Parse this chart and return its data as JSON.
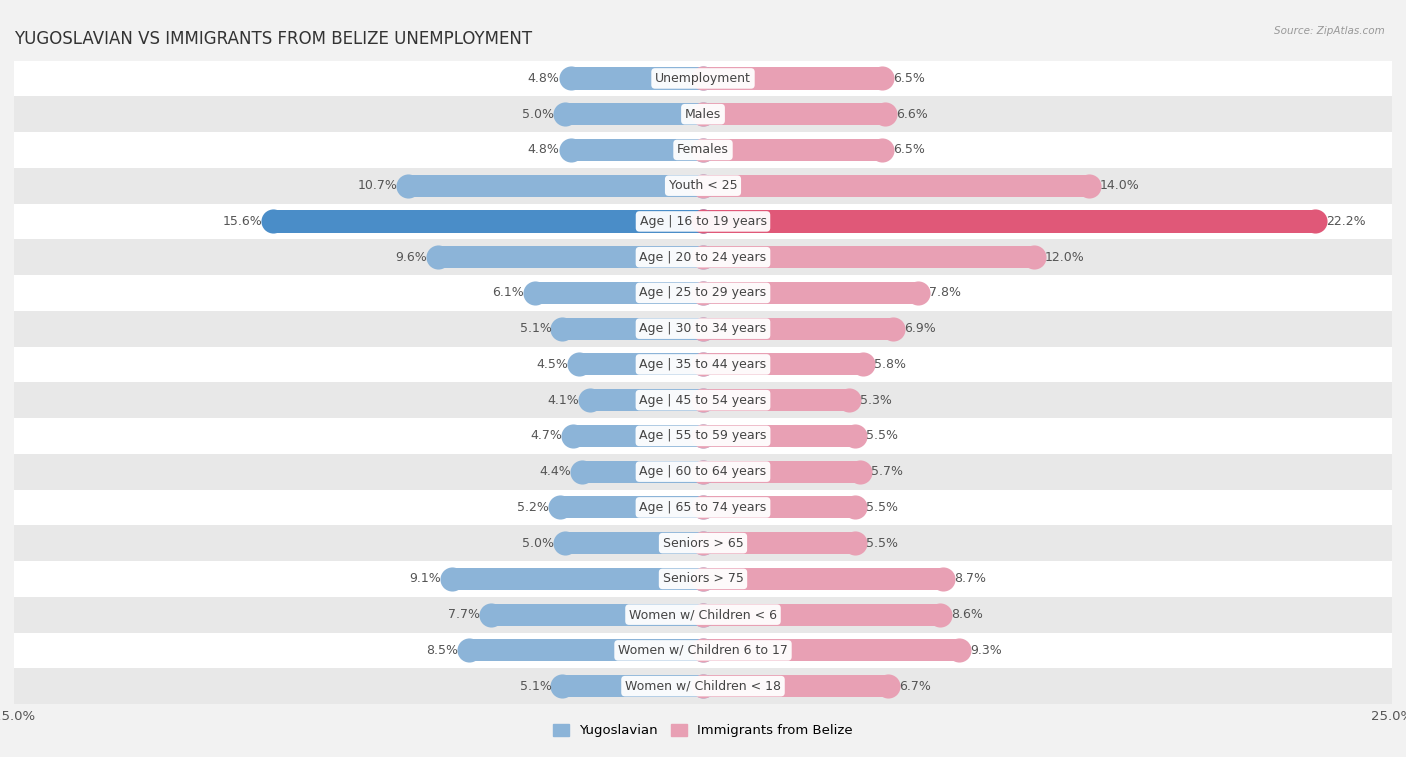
{
  "title": "YUGOSLAVIAN VS IMMIGRANTS FROM BELIZE UNEMPLOYMENT",
  "source": "Source: ZipAtlas.com",
  "categories": [
    "Unemployment",
    "Males",
    "Females",
    "Youth < 25",
    "Age | 16 to 19 years",
    "Age | 20 to 24 years",
    "Age | 25 to 29 years",
    "Age | 30 to 34 years",
    "Age | 35 to 44 years",
    "Age | 45 to 54 years",
    "Age | 55 to 59 years",
    "Age | 60 to 64 years",
    "Age | 65 to 74 years",
    "Seniors > 65",
    "Seniors > 75",
    "Women w/ Children < 6",
    "Women w/ Children 6 to 17",
    "Women w/ Children < 18"
  ],
  "yugoslavian": [
    4.8,
    5.0,
    4.8,
    10.7,
    15.6,
    9.6,
    6.1,
    5.1,
    4.5,
    4.1,
    4.7,
    4.4,
    5.2,
    5.0,
    9.1,
    7.7,
    8.5,
    5.1
  ],
  "belize": [
    6.5,
    6.6,
    6.5,
    14.0,
    22.2,
    12.0,
    7.8,
    6.9,
    5.8,
    5.3,
    5.5,
    5.7,
    5.5,
    5.5,
    8.7,
    8.6,
    9.3,
    6.7
  ],
  "yugoslav_color": "#8cb4d8",
  "belize_color": "#e8a0b4",
  "yugoslav_highlight_color": "#4a8dc8",
  "belize_highlight_color": "#e05878",
  "highlight_row": 4,
  "xlim": 25.0,
  "background_color": "#f2f2f2",
  "row_bg_odd": "#ffffff",
  "row_bg_even": "#e8e8e8",
  "bar_height": 0.62,
  "label_fontsize": 9.0,
  "cat_fontsize": 9.0,
  "title_fontsize": 12,
  "legend_label_yugoslav": "Yugoslavian",
  "legend_label_belize": "Immigrants from Belize"
}
